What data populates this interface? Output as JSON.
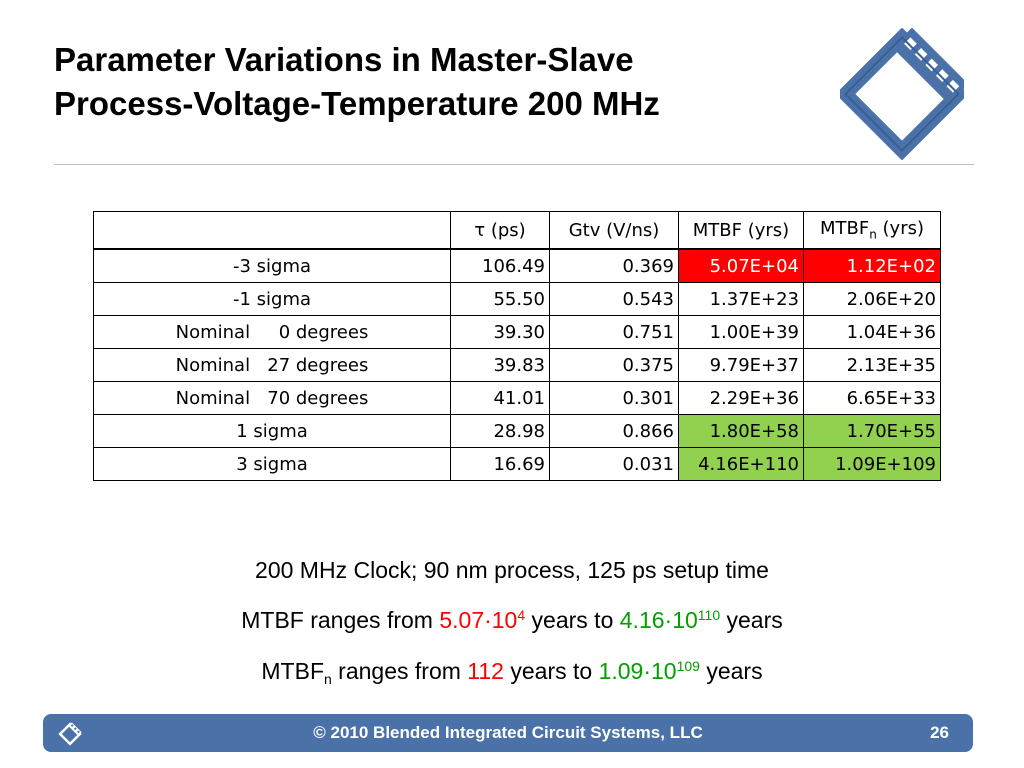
{
  "title": {
    "line1": "Parameter Variations in Master-Slave",
    "line2": "Process-Voltage-Temperature 200 MHz"
  },
  "table": {
    "headers": {
      "tau_symbol": "τ",
      "tau_unit": " (ps)",
      "gtv": "Gtv (V/ns)",
      "mtbf": "MTBF (yrs)",
      "mtbfn_base": "MTBF",
      "mtbfn_sub": "n",
      "mtbfn_unit": " (yrs)"
    },
    "rows": [
      {
        "label": "-3 sigma",
        "tau": "106.49",
        "gtv": "0.369",
        "mtbf": "5.07E+04",
        "mtbfn": "1.12E+02",
        "highlight": "red"
      },
      {
        "label": "-1 sigma",
        "tau": "55.50",
        "gtv": "0.543",
        "mtbf": "1.37E+23",
        "mtbfn": "2.06E+20",
        "highlight": ""
      },
      {
        "label": "Nominal     0 degrees",
        "tau": "39.30",
        "gtv": "0.751",
        "mtbf": "1.00E+39",
        "mtbfn": "1.04E+36",
        "highlight": ""
      },
      {
        "label": "Nominal   27 degrees",
        "tau": "39.83",
        "gtv": "0.375",
        "mtbf": "9.79E+37",
        "mtbfn": "2.13E+35",
        "highlight": ""
      },
      {
        "label": "Nominal   70 degrees",
        "tau": "41.01",
        "gtv": "0.301",
        "mtbf": "2.29E+36",
        "mtbfn": "6.65E+33",
        "highlight": ""
      },
      {
        "label": "1 sigma",
        "tau": "28.98",
        "gtv": "0.866",
        "mtbf": "1.80E+58",
        "mtbfn": "1.70E+55",
        "highlight": "green"
      },
      {
        "label": "3 sigma",
        "tau": "16.69",
        "gtv": "0.031",
        "mtbf": "4.16E+110",
        "mtbfn": "1.09E+109",
        "highlight": "green"
      }
    ],
    "highlight_colors": {
      "red": "#ff0000",
      "green": "#92d050"
    }
  },
  "notes": {
    "line1": "200 MHz Clock; 90 nm process, 125 ps setup time",
    "line2": {
      "prefix": "MTBF ranges from ",
      "min_base": "5.07·10",
      "min_exp": "4",
      "middle": " years to ",
      "max_base": "4.16·10",
      "max_exp": "110",
      "suffix": " years"
    },
    "line3": {
      "prefix_base": "MTBF",
      "prefix_sub": "n",
      "prefix_rest": " ranges from ",
      "min": "112",
      "middle": " years to ",
      "max_base": "1.09·10",
      "max_exp": "109",
      "suffix": " years"
    }
  },
  "footer": {
    "copyright": "© 2010 Blended Integrated Circuit Systems, LLC",
    "page_number": "26",
    "color": "#4a72a8"
  },
  "icons": {
    "header_logo": "film-diamond-logo-icon",
    "footer_logo": "film-diamond-small-icon"
  }
}
